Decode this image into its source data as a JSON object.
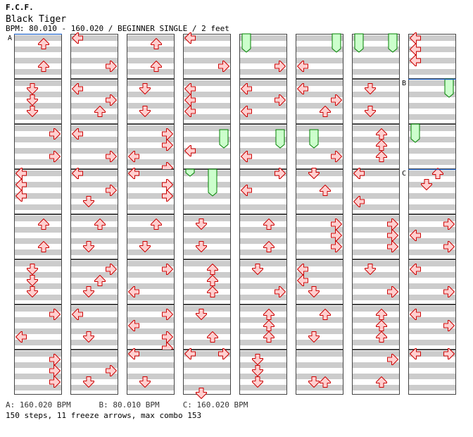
{
  "header": {
    "artist": "F.C.F.",
    "title": "Black Tiger",
    "bpm_line": "BPM: 80.010 - 160.020 / BEGINNER SINGLE / 2 feet"
  },
  "footer": {
    "bpm_a": "A: 160.020 BPM",
    "bpm_b": "B: 80.010 BPM",
    "bpm_c": "C: 160.020 BPM",
    "stats": "150 steps, 11 freeze arrows, max combo 153"
  },
  "bpm_markers": [
    {
      "label": "A",
      "measure": 0,
      "pos": 0
    },
    {
      "label": "B",
      "measure": 57,
      "pos": 0
    },
    {
      "label": "C",
      "measure": 59,
      "pos": 0
    }
  ],
  "colors": {
    "stripe": "#cccccc",
    "arrow_fill": "#ffd0d0",
    "arrow_stroke": "#cc0000",
    "freeze_fill": "#ccffcc",
    "freeze_stroke": "#008000",
    "bpm_line": "#2266cc"
  },
  "layout_grid": {
    "columns": 8,
    "measures_per_column": 8
  },
  "columns": [
    [
      {
        "arrows": [
          [
            2,
            1
          ],
          [
            2,
            5
          ]
        ]
      },
      {
        "arrows": [
          [
            1,
            1
          ],
          [
            1,
            3
          ],
          [
            1,
            5
          ]
        ]
      },
      {
        "arrows": [
          [
            3,
            1
          ],
          [
            3,
            5
          ]
        ]
      },
      {
        "arrows": [
          [
            0,
            0
          ],
          [
            0,
            2
          ],
          [
            0,
            4
          ]
        ]
      },
      {
        "arrows": [
          [
            2,
            1
          ],
          [
            2,
            5
          ]
        ]
      },
      {
        "arrows": [
          [
            1,
            1
          ],
          [
            1,
            3
          ],
          [
            1,
            5
          ]
        ]
      },
      {
        "arrows": [
          [
            3,
            1
          ],
          [
            0,
            5
          ]
        ]
      },
      {
        "arrows": [
          [
            3,
            1
          ],
          [
            3,
            3
          ],
          [
            3,
            5
          ]
        ]
      }
    ],
    [
      {
        "arrows": [
          [
            0,
            0
          ],
          [
            3,
            5
          ]
        ]
      },
      {
        "arrows": [
          [
            0,
            1
          ],
          [
            3,
            3
          ],
          [
            2,
            5
          ]
        ]
      },
      {
        "arrows": [
          [
            0,
            1
          ],
          [
            3,
            5
          ]
        ]
      },
      {
        "arrows": [
          [
            0,
            0
          ],
          [
            3,
            3
          ],
          [
            1,
            5
          ]
        ]
      },
      {
        "arrows": [
          [
            2,
            1
          ],
          [
            1,
            5
          ]
        ]
      },
      {
        "arrows": [
          [
            3,
            1
          ],
          [
            2,
            3
          ],
          [
            1,
            5
          ]
        ]
      },
      {
        "arrows": [
          [
            0,
            1
          ],
          [
            1,
            5
          ]
        ]
      },
      {
        "arrows": [
          [
            3,
            3
          ],
          [
            1,
            5
          ]
        ]
      }
    ],
    [
      {
        "arrows": [
          [
            2,
            1
          ],
          [
            2,
            5
          ]
        ]
      },
      {
        "arrows": [
          [
            1,
            1
          ],
          [
            1,
            5
          ]
        ]
      },
      {
        "arrows": [
          [
            3,
            1
          ],
          [
            3,
            3
          ],
          [
            0,
            5
          ],
          [
            3,
            7
          ]
        ]
      },
      {
        "arrows": [
          [
            0,
            0
          ],
          [
            3,
            2
          ],
          [
            3,
            4
          ]
        ]
      },
      {
        "arrows": [
          [
            2,
            1
          ],
          [
            1,
            5
          ]
        ]
      },
      {
        "arrows": [
          [
            3,
            1
          ],
          [
            0,
            5
          ]
        ]
      },
      {
        "arrows": [
          [
            3,
            1
          ],
          [
            0,
            3
          ],
          [
            3,
            5
          ],
          [
            3,
            7
          ]
        ]
      },
      {
        "arrows": [
          [
            0,
            0
          ],
          [
            1,
            5
          ]
        ]
      }
    ],
    [
      {
        "arrows": [
          [
            0,
            0
          ],
          [
            3,
            5
          ]
        ]
      },
      {
        "arrows": [
          [
            0,
            1
          ],
          [
            0,
            3
          ],
          [
            0,
            5
          ]
        ]
      },
      {
        "arrows": [
          [
            0,
            4
          ]
        ],
        "freezes": [
          [
            3,
            1,
            3
          ]
        ]
      },
      {
        "arrows": [],
        "freezes": [
          [
            0,
            -2,
            0
          ],
          [
            2,
            0,
            3.5
          ]
        ]
      },
      {
        "arrows": [
          [
            1,
            1
          ],
          [
            1,
            5
          ]
        ]
      },
      {
        "arrows": [
          [
            2,
            1
          ],
          [
            2,
            3
          ],
          [
            2,
            5
          ]
        ]
      },
      {
        "arrows": [
          [
            1,
            1
          ],
          [
            2,
            5
          ]
        ]
      },
      {
        "arrows": [
          [
            0,
            0
          ],
          [
            3,
            0
          ],
          [
            1,
            7
          ]
        ]
      }
    ],
    [
      {
        "arrows": [
          [
            3,
            5
          ]
        ],
        "freezes": [
          [
            0,
            0,
            2
          ]
        ]
      },
      {
        "arrows": [
          [
            0,
            1
          ],
          [
            3,
            3
          ],
          [
            0,
            5
          ]
        ]
      },
      {
        "arrows": [
          [
            0,
            5
          ]
        ],
        "freezes": [
          [
            3,
            1,
            3
          ]
        ]
      },
      {
        "arrows": [
          [
            3,
            0
          ],
          [
            0,
            3
          ]
        ]
      },
      {
        "arrows": [
          [
            2,
            1
          ],
          [
            2,
            5
          ]
        ]
      },
      {
        "arrows": [
          [
            1,
            1
          ],
          [
            3,
            5
          ]
        ]
      },
      {
        "arrows": [
          [
            2,
            1
          ],
          [
            2,
            3
          ],
          [
            2,
            5
          ]
        ]
      },
      {
        "arrows": [
          [
            1,
            1
          ],
          [
            1,
            3
          ],
          [
            1,
            5
          ]
        ]
      }
    ],
    [
      {
        "arrows": [
          [
            0,
            5
          ]
        ],
        "freezes": [
          [
            3,
            0,
            2
          ]
        ]
      },
      {
        "arrows": [
          [
            0,
            1
          ],
          [
            3,
            3
          ],
          [
            2,
            5
          ]
        ]
      },
      {
        "arrows": [
          [
            3,
            5
          ]
        ],
        "freezes": [
          [
            1,
            1,
            3
          ]
        ]
      },
      {
        "arrows": [
          [
            1,
            0
          ],
          [
            2,
            3
          ]
        ]
      },
      {
        "arrows": [
          [
            3,
            1
          ],
          [
            3,
            3
          ],
          [
            3,
            5
          ]
        ]
      },
      {
        "arrows": [
          [
            0,
            1
          ],
          [
            0,
            3
          ],
          [
            1,
            5
          ]
        ]
      },
      {
        "arrows": [
          [
            2,
            1
          ],
          [
            1,
            5
          ]
        ]
      },
      {
        "arrows": [
          [
            1,
            5
          ],
          [
            2,
            5
          ]
        ]
      }
    ],
    [
      {
        "arrows": [],
        "freezes": [
          [
            0,
            0,
            2
          ],
          [
            3,
            0,
            2
          ]
        ]
      },
      {
        "arrows": [
          [
            1,
            1
          ],
          [
            1,
            5
          ]
        ]
      },
      {
        "arrows": [
          [
            2,
            1
          ],
          [
            2,
            3
          ],
          [
            2,
            5
          ]
        ]
      },
      {
        "arrows": [
          [
            0,
            0
          ],
          [
            0,
            5
          ]
        ]
      },
      {
        "arrows": [
          [
            3,
            1
          ],
          [
            3,
            3
          ],
          [
            3,
            5
          ]
        ]
      },
      {
        "arrows": [
          [
            1,
            1
          ],
          [
            3,
            5
          ]
        ]
      },
      {
        "arrows": [
          [
            2,
            1
          ],
          [
            2,
            3
          ],
          [
            2,
            5
          ]
        ]
      },
      {
        "arrows": [
          [
            3,
            1
          ],
          [
            2,
            5
          ]
        ]
      }
    ],
    [
      {
        "arrows": [
          [
            0,
            0
          ],
          [
            0,
            2
          ],
          [
            0,
            4
          ]
        ]
      },
      {
        "arrows": [],
        "freezes": [
          [
            3,
            0,
            2
          ]
        ]
      },
      {
        "arrows": [],
        "freezes": [
          [
            0,
            0,
            2
          ]
        ]
      },
      {
        "arrows": [
          [
            2,
            0
          ],
          [
            1,
            2
          ]
        ]
      },
      {
        "arrows": [
          [
            3,
            1
          ],
          [
            0,
            3
          ],
          [
            3,
            5
          ]
        ]
      },
      {
        "arrows": [
          [
            0,
            1
          ],
          [
            3,
            5
          ]
        ]
      },
      {
        "arrows": [
          [
            0,
            1
          ],
          [
            3,
            3
          ]
        ]
      },
      {
        "arrows": [
          [
            0,
            0
          ],
          [
            3,
            0
          ]
        ]
      }
    ]
  ]
}
